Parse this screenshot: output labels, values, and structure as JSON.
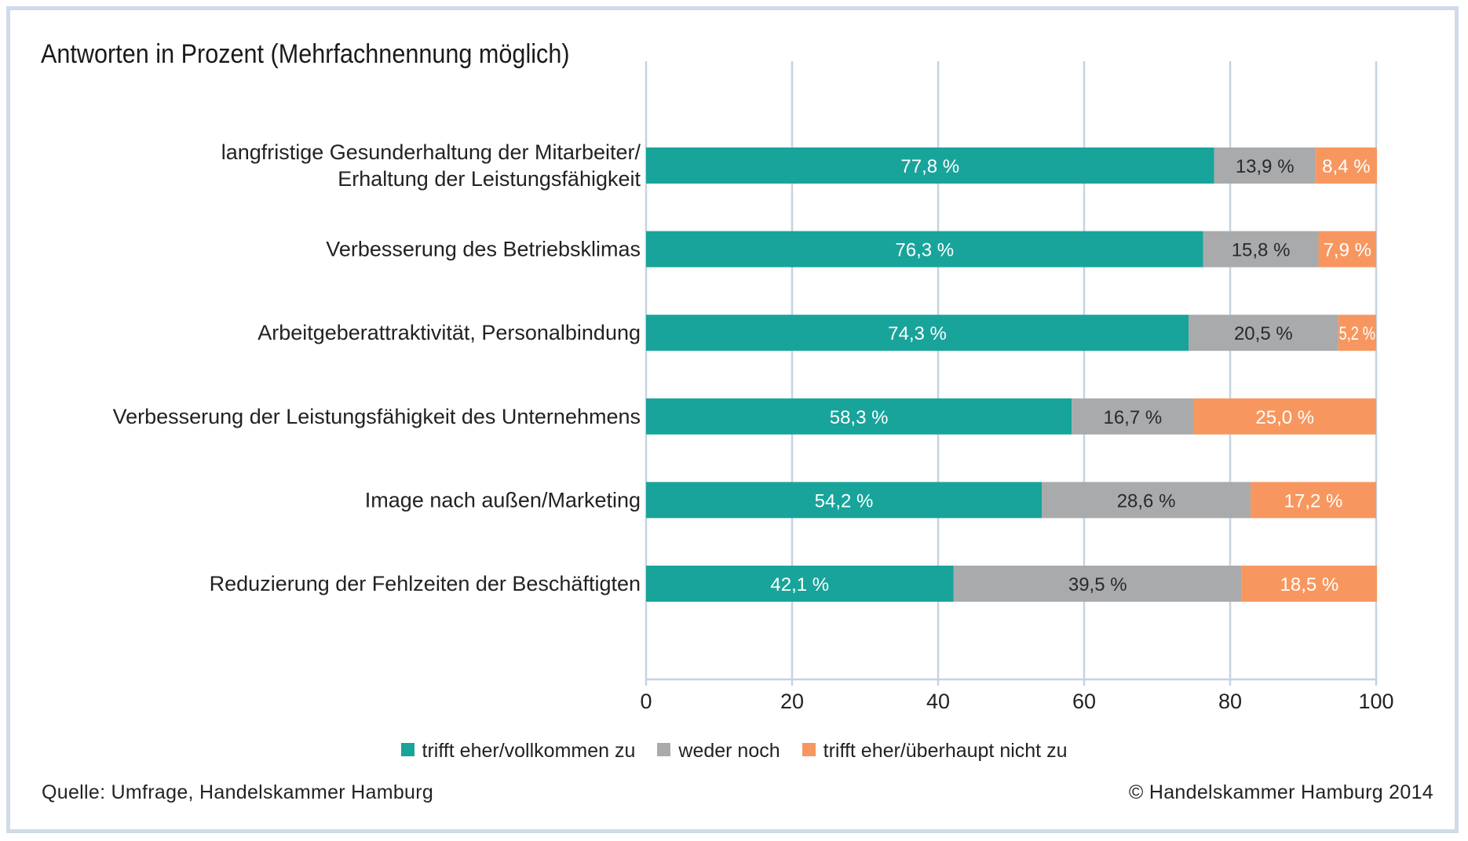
{
  "chart_data": {
    "type": "bar",
    "orientation": "horizontal",
    "stacked": true,
    "subtitle": "Antworten in Prozent (Mehrfachnennung möglich)",
    "categories": [
      [
        "langfristige Gesunderhaltung der Mitarbeiter/",
        "Erhaltung der Leistungsfähigkeit"
      ],
      [
        "Verbesserung des Betriebsklimas"
      ],
      [
        "Arbeitgeberattraktivität, Personalbindung"
      ],
      [
        "Verbesserung der Leistungsfähigkeit des Unternehmens"
      ],
      [
        "Image nach außen/Marketing"
      ],
      [
        "Reduzierung der Fehlzeiten der Beschäftigten"
      ]
    ],
    "series": [
      {
        "name": "trifft eher/vollkommen zu",
        "color": "#18a49a",
        "values": [
          77.8,
          76.3,
          74.3,
          58.3,
          54.2,
          42.1
        ],
        "labels": [
          "77,8 %",
          "76,3 %",
          "74,3 %",
          "58,3 %",
          "54,2 %",
          "42,1 %"
        ]
      },
      {
        "name": "weder noch",
        "color": "#a9aaac",
        "values": [
          13.9,
          15.8,
          20.5,
          16.7,
          28.6,
          39.5
        ],
        "labels": [
          "13,9 %",
          "15,8 %",
          "20,5 %",
          "16,7 %",
          "28,6 %",
          "39,5 %"
        ]
      },
      {
        "name": "trifft eher/überhaupt nicht zu",
        "color": "#f7975f",
        "values": [
          8.4,
          7.9,
          5.2,
          25.0,
          17.2,
          18.5
        ],
        "labels": [
          "8,4 %",
          "7,9 %",
          "5,2 %",
          "25,0 %",
          "17,2 %",
          "18,5 %"
        ]
      }
    ],
    "xlim": [
      0,
      100
    ],
    "xticks": [
      "0",
      "20",
      "40",
      "60",
      "80",
      "100"
    ],
    "grid": true,
    "legend_position": "bottom"
  },
  "footer": {
    "source": "Quelle: Umfrage, Handelskammer Hamburg",
    "copyright": "© Handelskammer Hamburg 2014"
  },
  "colors": {
    "frame": "#cfdbe8",
    "grid": "#c5d3e0"
  }
}
